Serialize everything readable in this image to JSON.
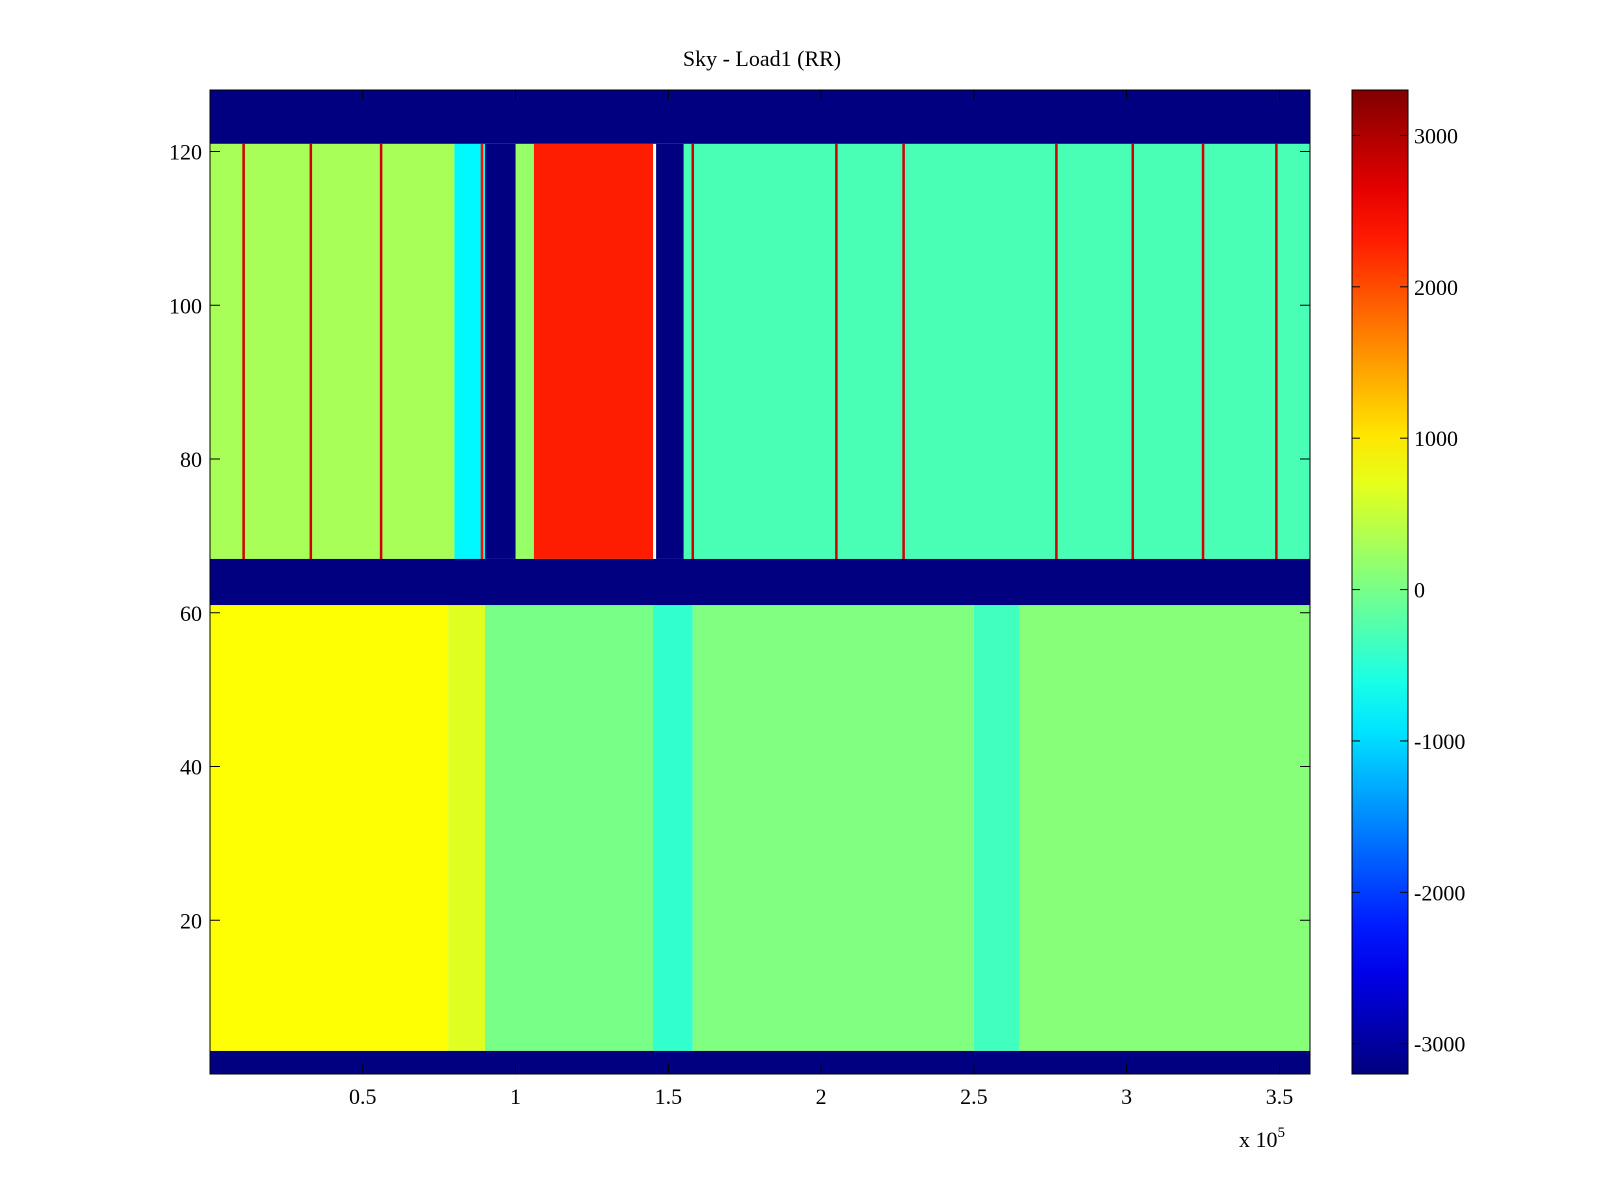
{
  "chart_data": {
    "type": "heatmap",
    "title": "Sky - Load1 (RR)",
    "xlabel": "",
    "ylabel": "",
    "x_exponent_base": "x 10",
    "x_exponent_power": "5",
    "xlim": [
      0,
      3.6
    ],
    "ylim": [
      0,
      128
    ],
    "x_ticks": [
      0.5,
      1,
      1.5,
      2,
      2.5,
      3,
      3.5
    ],
    "x_tick_labels": [
      "0.5",
      "1",
      "1.5",
      "2",
      "2.5",
      "3",
      "3.5"
    ],
    "y_ticks": [
      20,
      40,
      60,
      80,
      100,
      120
    ],
    "y_tick_labels": [
      "20",
      "40",
      "60",
      "80",
      "100",
      "120"
    ],
    "colorbar": {
      "colormap": "jet",
      "clim": [
        -3200,
        3300
      ],
      "ticks": [
        -3000,
        -2000,
        -1000,
        0,
        1000,
        2000,
        3000
      ],
      "tick_labels": [
        "-3000",
        "-2000",
        "-1000",
        "0",
        "1000",
        "2000",
        "3000"
      ]
    },
    "masked_bands_y": [
      [
        0,
        3
      ],
      [
        61,
        67
      ],
      [
        121,
        128
      ]
    ],
    "masked_bands_x_upper": [
      [
        0.9,
        1.0
      ],
      [
        1.46,
        1.55
      ]
    ],
    "regions": [
      {
        "name": "upper",
        "y": [
          67,
          121
        ],
        "x": [
          0,
          0.8
        ],
        "value": 300
      },
      {
        "name": "upper",
        "y": [
          67,
          121
        ],
        "x": [
          0.8,
          0.9
        ],
        "value": -800
      },
      {
        "name": "upper",
        "y": [
          67,
          121
        ],
        "x": [
          1.0,
          1.06
        ],
        "value": 200
      },
      {
        "name": "upper",
        "y": [
          67,
          121
        ],
        "x": [
          1.06,
          1.45
        ],
        "value": 2300
      },
      {
        "name": "upper",
        "y": [
          67,
          121
        ],
        "x": [
          1.55,
          3.6
        ],
        "value": -300
      },
      {
        "name": "lower",
        "y": [
          3,
          61
        ],
        "x": [
          0,
          0.78
        ],
        "value": 850
      },
      {
        "name": "lower",
        "y": [
          3,
          61
        ],
        "x": [
          0.78,
          0.9
        ],
        "value": 650
      },
      {
        "name": "lower",
        "y": [
          3,
          61
        ],
        "x": [
          0.9,
          1.45
        ],
        "value": 0
      },
      {
        "name": "lower",
        "y": [
          3,
          61
        ],
        "x": [
          1.45,
          1.58
        ],
        "value": -450
      },
      {
        "name": "lower",
        "y": [
          3,
          61
        ],
        "x": [
          1.58,
          2.5
        ],
        "value": 50
      },
      {
        "name": "lower",
        "y": [
          3,
          61
        ],
        "x": [
          2.5,
          2.65
        ],
        "value": -350
      },
      {
        "name": "lower",
        "y": [
          3,
          61
        ],
        "x": [
          2.65,
          3.6
        ],
        "value": 100
      }
    ],
    "vertical_lines_upper": [
      {
        "x": 0.11,
        "value": 2800
      },
      {
        "x": 0.33,
        "value": 2800
      },
      {
        "x": 0.56,
        "value": 2800
      },
      {
        "x": 0.89,
        "value": 2400
      },
      {
        "x": 1.58,
        "value": 2800
      },
      {
        "x": 2.05,
        "value": 2800
      },
      {
        "x": 2.27,
        "value": 2800
      },
      {
        "x": 2.77,
        "value": 2800
      },
      {
        "x": 3.02,
        "value": 2800
      },
      {
        "x": 3.25,
        "value": 2800
      },
      {
        "x": 3.49,
        "value": 2800
      }
    ]
  }
}
